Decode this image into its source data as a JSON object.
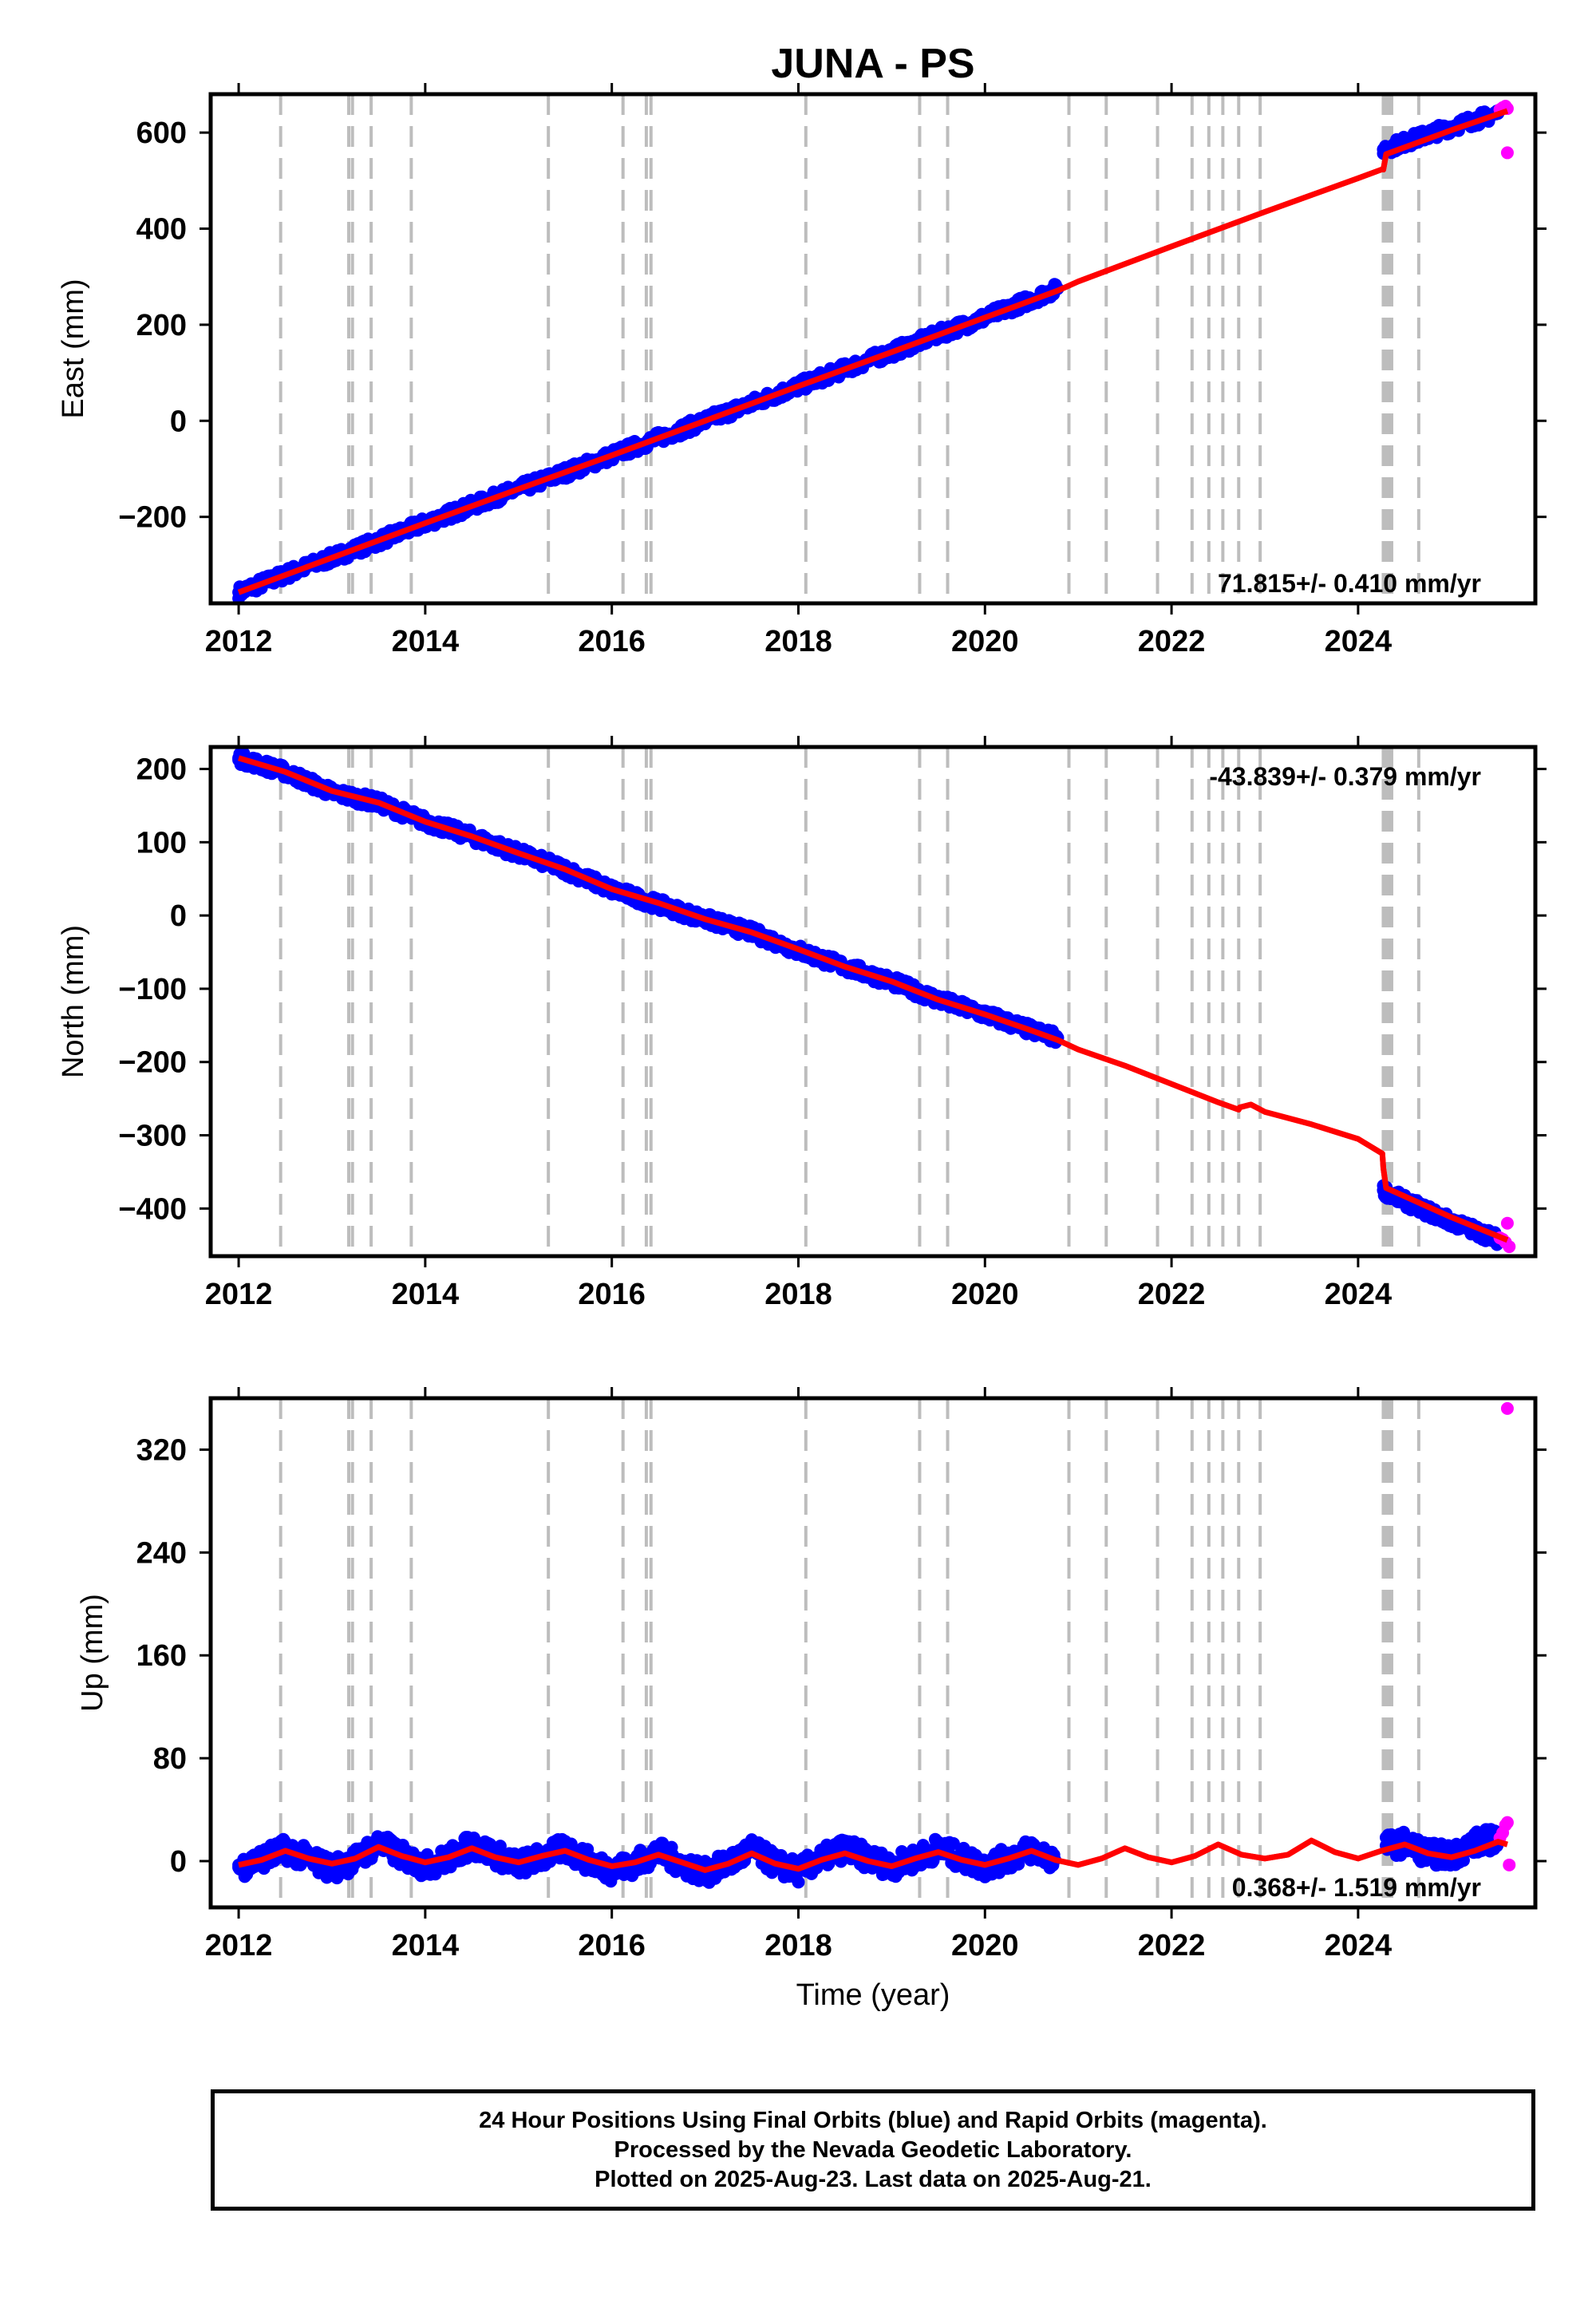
{
  "chart_data": [
    {
      "type": "scatter",
      "title": "JUNA - PS",
      "ylabel": "East (mm)",
      "xlim": [
        2011.7,
        2025.9
      ],
      "ylim": [
        -380,
        680
      ],
      "xticks": [
        2012,
        2014,
        2016,
        2018,
        2020,
        2022,
        2024
      ],
      "yticks": [
        -200,
        0,
        200,
        400,
        600
      ],
      "rate_label": "71.815+/- 0.410 mm/yr",
      "rate_position": "bottom-right",
      "grid": false,
      "equipment_change_epochs": [
        2012.45,
        2013.18,
        2013.22,
        2013.42,
        2013.85,
        2015.32,
        2016.12,
        2016.37,
        2016.42,
        2018.08,
        2019.3,
        2019.6,
        2020.9,
        2021.3,
        2021.85,
        2022.22,
        2022.4,
        2022.55,
        2022.72,
        2022.95,
        2024.27,
        2024.3,
        2024.33,
        2024.36,
        2024.65
      ],
      "series": [
        {
          "name": "Final Orbits (blue)",
          "color": "#0000ff",
          "style": "points",
          "x": [
            2012.0,
            2012.5,
            2013.0,
            2013.5,
            2014.0,
            2014.5,
            2015.0,
            2015.5,
            2016.0,
            2016.5,
            2017.0,
            2017.5,
            2018.0,
            2018.5,
            2019.0,
            2019.5,
            2020.0,
            2020.5,
            2020.78,
            2024.27,
            2024.5,
            2025.0,
            2025.5
          ],
          "y": [
            -357,
            -320,
            -285,
            -250,
            -213,
            -177,
            -142,
            -108,
            -72,
            -36,
            0,
            36,
            72,
            108,
            143,
            180,
            215,
            253,
            275,
            565,
            580,
            612,
            640
          ]
        },
        {
          "name": "Rapid Orbits (magenta)",
          "color": "#ff00ff",
          "style": "points",
          "x": [
            2025.52,
            2025.55,
            2025.58,
            2025.6,
            2025.6
          ],
          "y": [
            648,
            652,
            655,
            650,
            558
          ]
        },
        {
          "name": "model",
          "color": "#ff0000",
          "style": "line",
          "x": [
            2012.0,
            2013.0,
            2014.0,
            2015.0,
            2016.0,
            2017.0,
            2018.0,
            2019.0,
            2020.0,
            2020.78,
            2021.0,
            2022.0,
            2023.0,
            2024.0,
            2024.25,
            2024.27,
            2024.3,
            2025.0,
            2025.6
          ],
          "y": [
            -357,
            -285,
            -213,
            -142,
            -72,
            0,
            72,
            143,
            215,
            271,
            290,
            363,
            435,
            505,
            523,
            523,
            555,
            605,
            645
          ]
        }
      ]
    },
    {
      "type": "scatter",
      "ylabel": "North (mm)",
      "xlim": [
        2011.7,
        2025.9
      ],
      "ylim": [
        -465,
        230
      ],
      "xticks": [
        2012,
        2014,
        2016,
        2018,
        2020,
        2022,
        2024
      ],
      "yticks": [
        -400,
        -300,
        -200,
        -100,
        0,
        100,
        200
      ],
      "rate_label": "-43.839+/- 0.379 mm/yr",
      "rate_position": "top-right",
      "grid": false,
      "equipment_change_epochs": [
        2012.45,
        2013.18,
        2013.22,
        2013.42,
        2013.85,
        2015.32,
        2016.12,
        2016.37,
        2016.42,
        2018.08,
        2019.3,
        2019.6,
        2020.9,
        2021.3,
        2021.85,
        2022.22,
        2022.4,
        2022.55,
        2022.72,
        2022.95,
        2024.27,
        2024.3,
        2024.33,
        2024.36,
        2024.65
      ],
      "series": [
        {
          "name": "Final Orbits (blue)",
          "color": "#0000ff",
          "style": "points",
          "x": [
            2012.0,
            2012.5,
            2013.0,
            2013.5,
            2014.0,
            2014.5,
            2015.0,
            2015.5,
            2016.0,
            2016.5,
            2017.0,
            2017.5,
            2018.0,
            2018.5,
            2019.0,
            2019.5,
            2020.0,
            2020.5,
            2020.78,
            2024.27,
            2024.5,
            2025.0,
            2025.5
          ],
          "y": [
            215,
            196,
            168,
            154,
            128,
            108,
            85,
            63,
            35,
            15,
            -5,
            -23,
            -48,
            -70,
            -90,
            -115,
            -135,
            -157,
            -167,
            -375,
            -390,
            -418,
            -442
          ]
        },
        {
          "name": "Rapid Orbits (magenta)",
          "color": "#ff00ff",
          "style": "points",
          "x": [
            2025.52,
            2025.55,
            2025.58,
            2025.6,
            2025.62
          ],
          "y": [
            -440,
            -442,
            -446,
            -420,
            -452
          ]
        },
        {
          "name": "model",
          "color": "#ff0000",
          "style": "line",
          "x": [
            2012.0,
            2012.5,
            2013.0,
            2013.5,
            2014.0,
            2014.5,
            2015.0,
            2015.5,
            2016.0,
            2016.5,
            2017.0,
            2017.5,
            2018.0,
            2018.5,
            2019.0,
            2019.5,
            2020.0,
            2020.5,
            2020.78,
            2021.0,
            2021.5,
            2022.0,
            2022.5,
            2022.72,
            2022.73,
            2022.85,
            2023.0,
            2023.5,
            2024.0,
            2024.26,
            2024.27,
            2024.3,
            2025.0,
            2025.6
          ],
          "y": [
            215,
            196,
            170,
            154,
            128,
            108,
            85,
            63,
            36,
            17,
            -5,
            -23,
            -46,
            -70,
            -90,
            -115,
            -135,
            -157,
            -170,
            -183,
            -205,
            -230,
            -255,
            -265,
            -262,
            -258,
            -268,
            -285,
            -305,
            -325,
            -345,
            -372,
            -412,
            -443
          ]
        }
      ]
    },
    {
      "type": "scatter",
      "ylabel": "Up (mm)",
      "xlabel": "Time (year)",
      "xlim": [
        2011.7,
        2025.9
      ],
      "ylim": [
        -36,
        360
      ],
      "xticks": [
        2012,
        2014,
        2016,
        2018,
        2020,
        2022,
        2024
      ],
      "yticks": [
        0,
        80,
        160,
        240,
        320
      ],
      "rate_label": "0.368+/- 1.519 mm/yr",
      "rate_position": "bottom-right",
      "grid": false,
      "equipment_change_epochs": [
        2012.45,
        2013.18,
        2013.22,
        2013.42,
        2013.85,
        2015.32,
        2016.12,
        2016.37,
        2016.42,
        2018.08,
        2019.3,
        2019.6,
        2020.9,
        2021.3,
        2021.85,
        2022.22,
        2022.4,
        2022.55,
        2022.72,
        2022.95,
        2024.27,
        2024.3,
        2024.33,
        2024.36,
        2024.65
      ],
      "series": [
        {
          "name": "Final Orbits (blue)",
          "color": "#0000ff",
          "style": "points",
          "x": [
            2012.0,
            2012.25,
            2012.5,
            2012.75,
            2013.0,
            2013.25,
            2013.5,
            2013.75,
            2014.0,
            2014.25,
            2014.5,
            2014.75,
            2015.0,
            2015.25,
            2015.5,
            2015.75,
            2016.0,
            2016.25,
            2016.5,
            2016.75,
            2017.0,
            2017.25,
            2017.5,
            2017.75,
            2018.0,
            2018.25,
            2018.5,
            2018.75,
            2019.0,
            2019.25,
            2019.5,
            2019.75,
            2020.0,
            2020.25,
            2020.5,
            2020.75,
            2024.3,
            2024.5,
            2024.75,
            2025.0,
            2025.25,
            2025.5
          ],
          "y": [
            -5,
            2,
            9,
            2,
            -6,
            1,
            14,
            4,
            -4,
            2,
            13,
            5,
            -3,
            3,
            10,
            0,
            -7,
            -2,
            7,
            -2,
            -9,
            -2,
            9,
            -2,
            -8,
            2,
            10,
            2,
            -4,
            2,
            10,
            2,
            -4,
            2,
            9,
            1,
            12,
            14,
            6,
            4,
            14,
            18
          ]
        },
        {
          "name": "Rapid Orbits (magenta)",
          "color": "#ff00ff",
          "style": "points",
          "x": [
            2025.52,
            2025.55,
            2025.58,
            2025.6,
            2025.62,
            2025.6
          ],
          "y": [
            18,
            22,
            28,
            30,
            -3,
            352
          ]
        },
        {
          "name": "model",
          "color": "#ff0000",
          "style": "line",
          "x": [
            2012.0,
            2012.25,
            2012.5,
            2012.75,
            2013.0,
            2013.25,
            2013.5,
            2013.75,
            2014.0,
            2014.25,
            2014.5,
            2014.75,
            2015.0,
            2015.25,
            2015.5,
            2015.75,
            2016.0,
            2016.25,
            2016.5,
            2016.75,
            2017.0,
            2017.25,
            2017.5,
            2017.75,
            2018.0,
            2018.25,
            2018.5,
            2018.75,
            2019.0,
            2019.25,
            2019.5,
            2019.75,
            2020.0,
            2020.25,
            2020.5,
            2020.75,
            2021.0,
            2021.25,
            2021.5,
            2021.75,
            2022.0,
            2022.25,
            2022.5,
            2022.75,
            2023.0,
            2023.25,
            2023.5,
            2023.75,
            2024.0,
            2024.25,
            2024.5,
            2024.75,
            2025.0,
            2025.25,
            2025.5,
            2025.6
          ],
          "y": [
            -3,
            1,
            8,
            2,
            -2,
            2,
            11,
            4,
            -1,
            3,
            10,
            3,
            -1,
            4,
            8,
            1,
            -4,
            -1,
            5,
            -1,
            -7,
            -2,
            6,
            -2,
            -6,
            1,
            6,
            0,
            -4,
            2,
            7,
            1,
            -3,
            2,
            8,
            1,
            -3,
            2,
            10,
            3,
            -1,
            4,
            13,
            5,
            2,
            5,
            16,
            7,
            2,
            8,
            13,
            6,
            3,
            8,
            15,
            13
          ]
        }
      ]
    }
  ],
  "footer": {
    "line1": "24 Hour Positions Using Final Orbits (blue) and Rapid Orbits (magenta).",
    "line2": "Processed by the Nevada Geodetic Laboratory.",
    "line3": "Plotted on 2025-Aug-23. Last data on 2025-Aug-21."
  }
}
